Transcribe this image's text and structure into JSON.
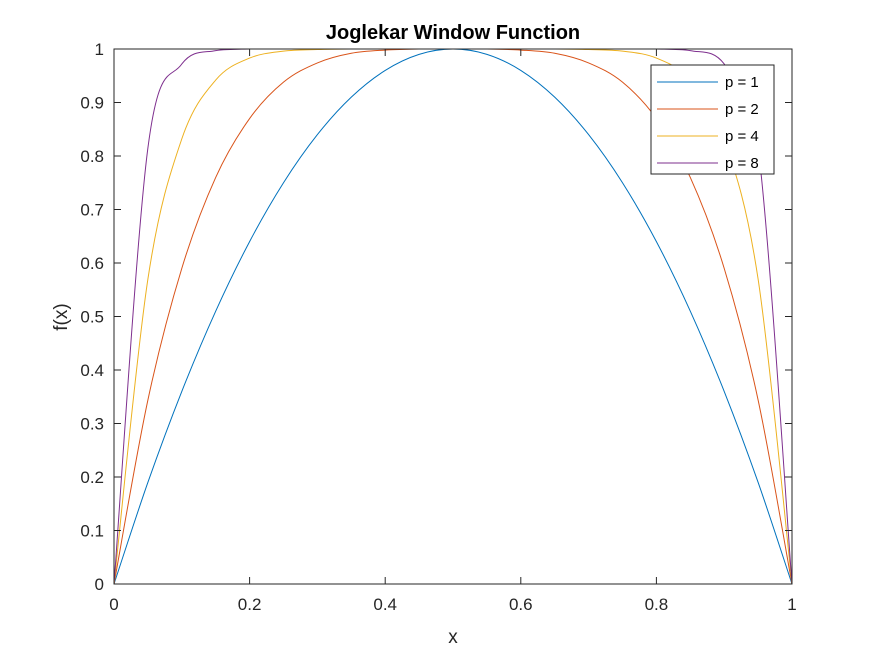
{
  "chart_data": {
    "type": "line",
    "title": "Joglekar Window Function",
    "xlabel": "x",
    "ylabel": "f(x)",
    "xlim": [
      0,
      1
    ],
    "ylim": [
      0,
      1
    ],
    "xticks": [
      0,
      0.2,
      0.4,
      0.6,
      0.8,
      1
    ],
    "xtick_labels": [
      "0",
      "0.2",
      "0.4",
      "0.6",
      "0.8",
      "1"
    ],
    "yticks": [
      0,
      0.1,
      0.2,
      0.3,
      0.4,
      0.5,
      0.6,
      0.7,
      0.8,
      0.9,
      1
    ],
    "ytick_labels": [
      "0",
      "0.1",
      "0.2",
      "0.3",
      "0.4",
      "0.5",
      "0.6",
      "0.7",
      "0.8",
      "0.9",
      "1"
    ],
    "grid": false,
    "legend_position": "top-right",
    "x": [
      0,
      0.05,
      0.1,
      0.15,
      0.2,
      0.25,
      0.3,
      0.35,
      0.4,
      0.45,
      0.5,
      0.55,
      0.6,
      0.65,
      0.7,
      0.75,
      0.8,
      0.85,
      0.9,
      0.95,
      1
    ],
    "series": [
      {
        "name": "p = 1",
        "color": "#0072BD",
        "values": [
          0,
          0.19,
          0.36,
          0.51,
          0.64,
          0.75,
          0.84,
          0.91,
          0.96,
          0.99,
          1,
          0.99,
          0.96,
          0.91,
          0.84,
          0.75,
          0.64,
          0.51,
          0.36,
          0.19,
          0
        ]
      },
      {
        "name": "p = 2",
        "color": "#D95319",
        "values": [
          0,
          0.344,
          0.59,
          0.76,
          0.87,
          0.938,
          0.974,
          0.992,
          0.998,
          1.0,
          1,
          1.0,
          0.998,
          0.992,
          0.974,
          0.938,
          0.87,
          0.76,
          0.59,
          0.344,
          0
        ]
      },
      {
        "name": "p = 4",
        "color": "#EDB120",
        "values": [
          0,
          0.57,
          0.832,
          0.942,
          0.983,
          0.996,
          0.999,
          1.0,
          1.0,
          1.0,
          1,
          1.0,
          1.0,
          1.0,
          0.999,
          0.996,
          0.983,
          0.942,
          0.832,
          0.57,
          0
        ]
      },
      {
        "name": "p = 8",
        "color": "#7E2F8E",
        "values": [
          0,
          0.815,
          0.972,
          0.997,
          1.0,
          1.0,
          1.0,
          1.0,
          1.0,
          1.0,
          1,
          1.0,
          1.0,
          1.0,
          1.0,
          1.0,
          1.0,
          0.997,
          0.972,
          0.815,
          0
        ]
      }
    ]
  }
}
